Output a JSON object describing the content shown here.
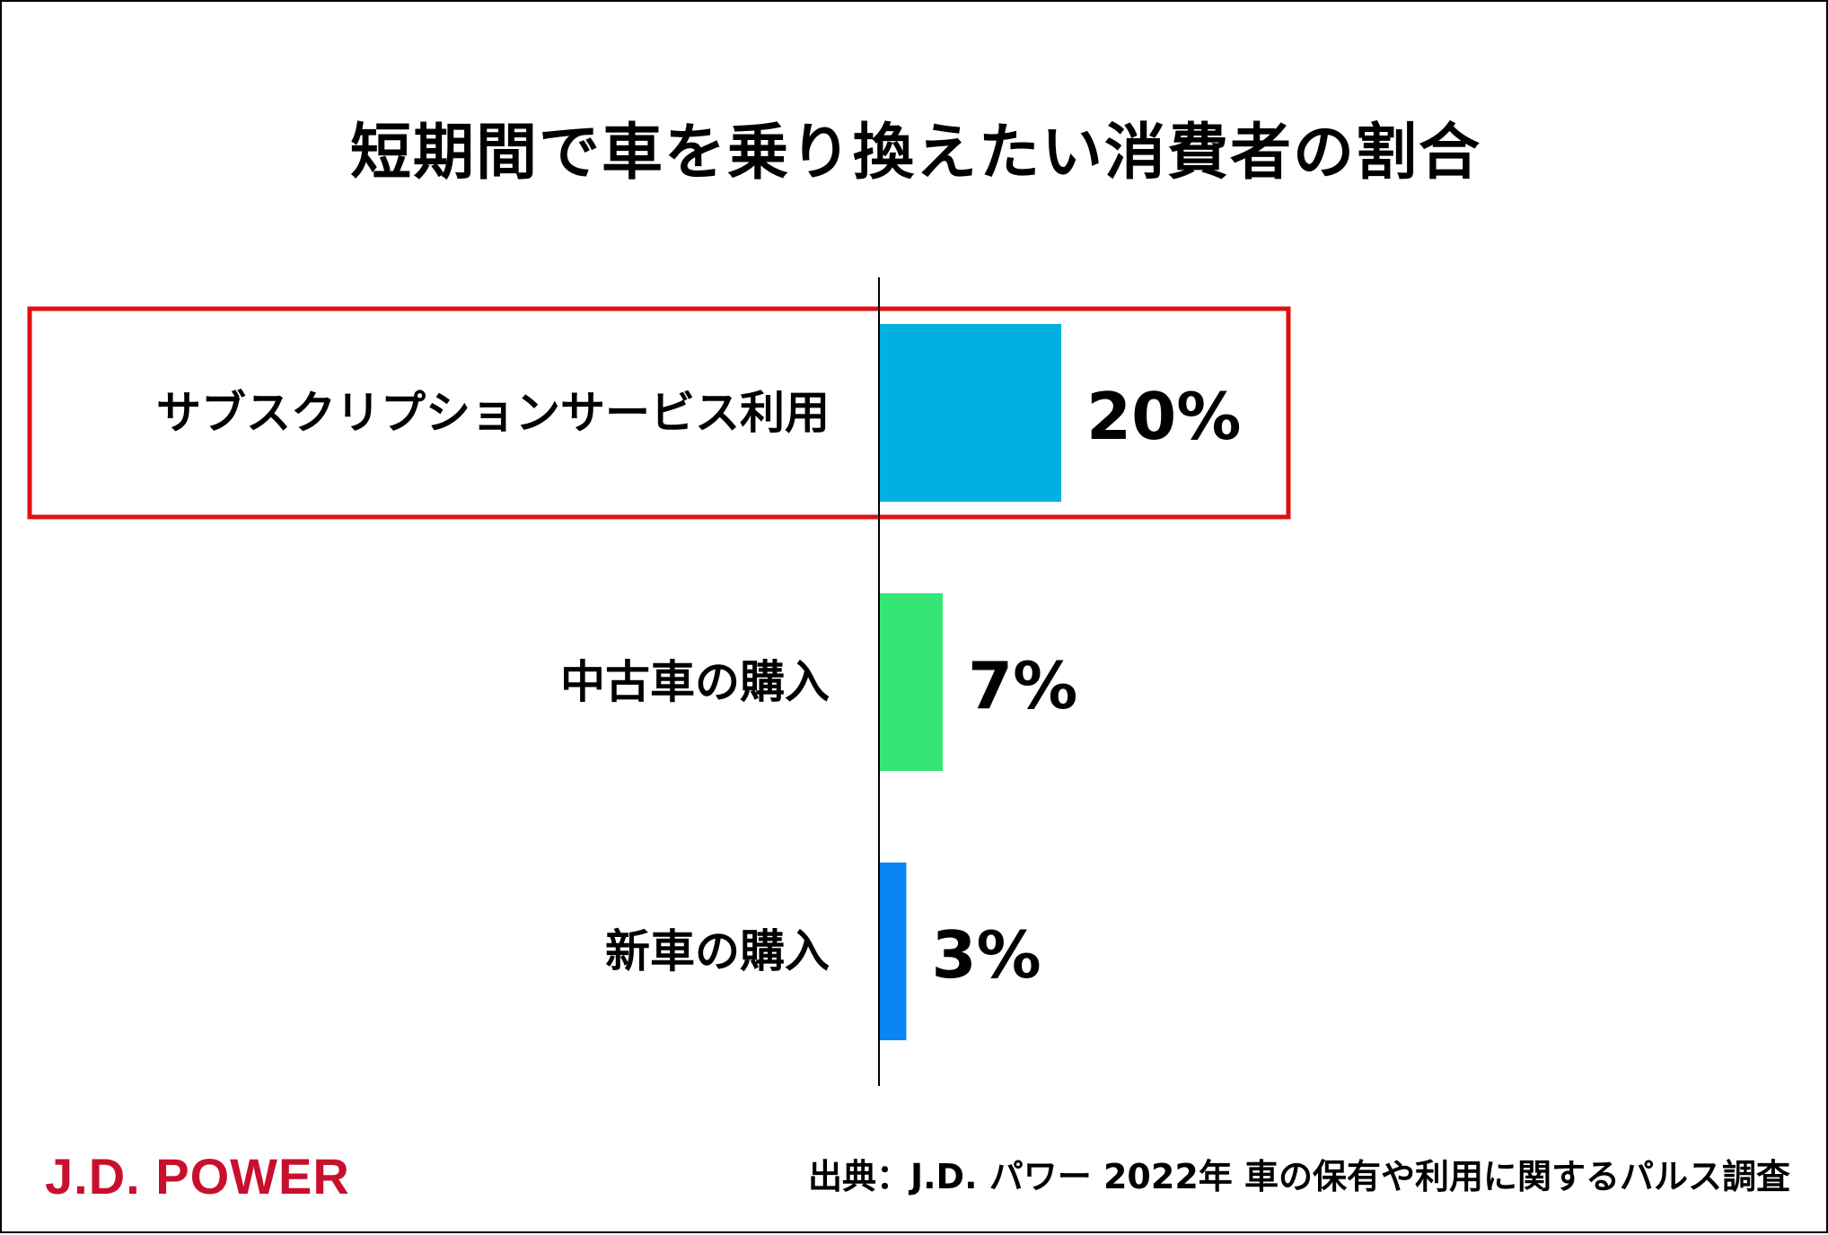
{
  "chart_data": {
    "type": "bar",
    "orientation": "horizontal",
    "title": "短期間で車を乗り換えたい消費者の割合",
    "categories": [
      "サブスクリプションサービス利用",
      "中古車の購入",
      "新車の購入"
    ],
    "values": [
      20,
      7,
      3
    ],
    "value_labels": [
      "20%",
      "7%",
      "3%"
    ],
    "unit": "%",
    "bar_colors": [
      "#00b0e0",
      "#35e677",
      "#0a84f5"
    ],
    "highlight_color": "#e01010",
    "highlight_category": "サブスクリプションサービス利用",
    "grid": false,
    "legend": "none"
  },
  "source": "出典：J.D. パワー 2022年 車の保有や利用に関するパルス調査",
  "logo": "J.D. POWER"
}
